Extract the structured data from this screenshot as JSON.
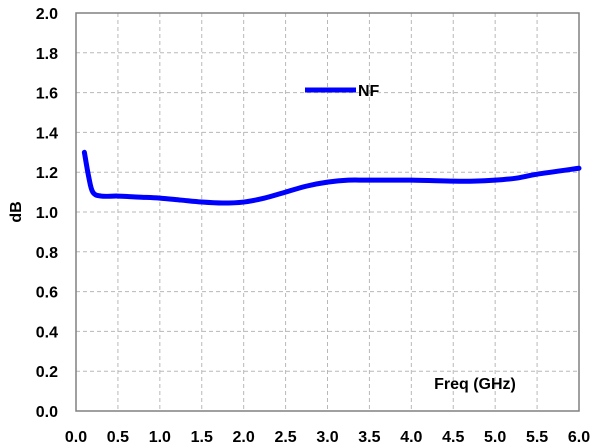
{
  "chart_data": {
    "type": "line",
    "title": "",
    "xlabel": "Freq (GHz)",
    "ylabel": "dB",
    "xlim": [
      0.0,
      6.0
    ],
    "ylim": [
      0.0,
      2.0
    ],
    "x_ticks": [
      "0.0",
      "0.5",
      "1.0",
      "1.5",
      "2.0",
      "2.5",
      "3.0",
      "3.5",
      "4.0",
      "4.5",
      "5.0",
      "5.5",
      "6.0"
    ],
    "y_ticks": [
      "0.0",
      "0.2",
      "0.4",
      "0.6",
      "0.8",
      "1.0",
      "1.2",
      "1.4",
      "1.6",
      "1.8",
      "2.0"
    ],
    "grid": true,
    "legend_position": "top-center",
    "series": [
      {
        "name": "NF",
        "color": "#0000ff",
        "x": [
          0.1,
          0.15,
          0.2,
          0.3,
          0.5,
          0.75,
          1.0,
          1.25,
          1.5,
          1.75,
          2.0,
          2.25,
          2.5,
          2.75,
          3.0,
          3.25,
          3.5,
          4.0,
          4.5,
          4.75,
          5.0,
          5.25,
          5.5,
          6.0
        ],
        "y": [
          1.3,
          1.18,
          1.1,
          1.08,
          1.08,
          1.075,
          1.07,
          1.06,
          1.05,
          1.045,
          1.05,
          1.07,
          1.1,
          1.13,
          1.15,
          1.16,
          1.16,
          1.16,
          1.155,
          1.155,
          1.16,
          1.17,
          1.19,
          1.22
        ]
      }
    ]
  }
}
